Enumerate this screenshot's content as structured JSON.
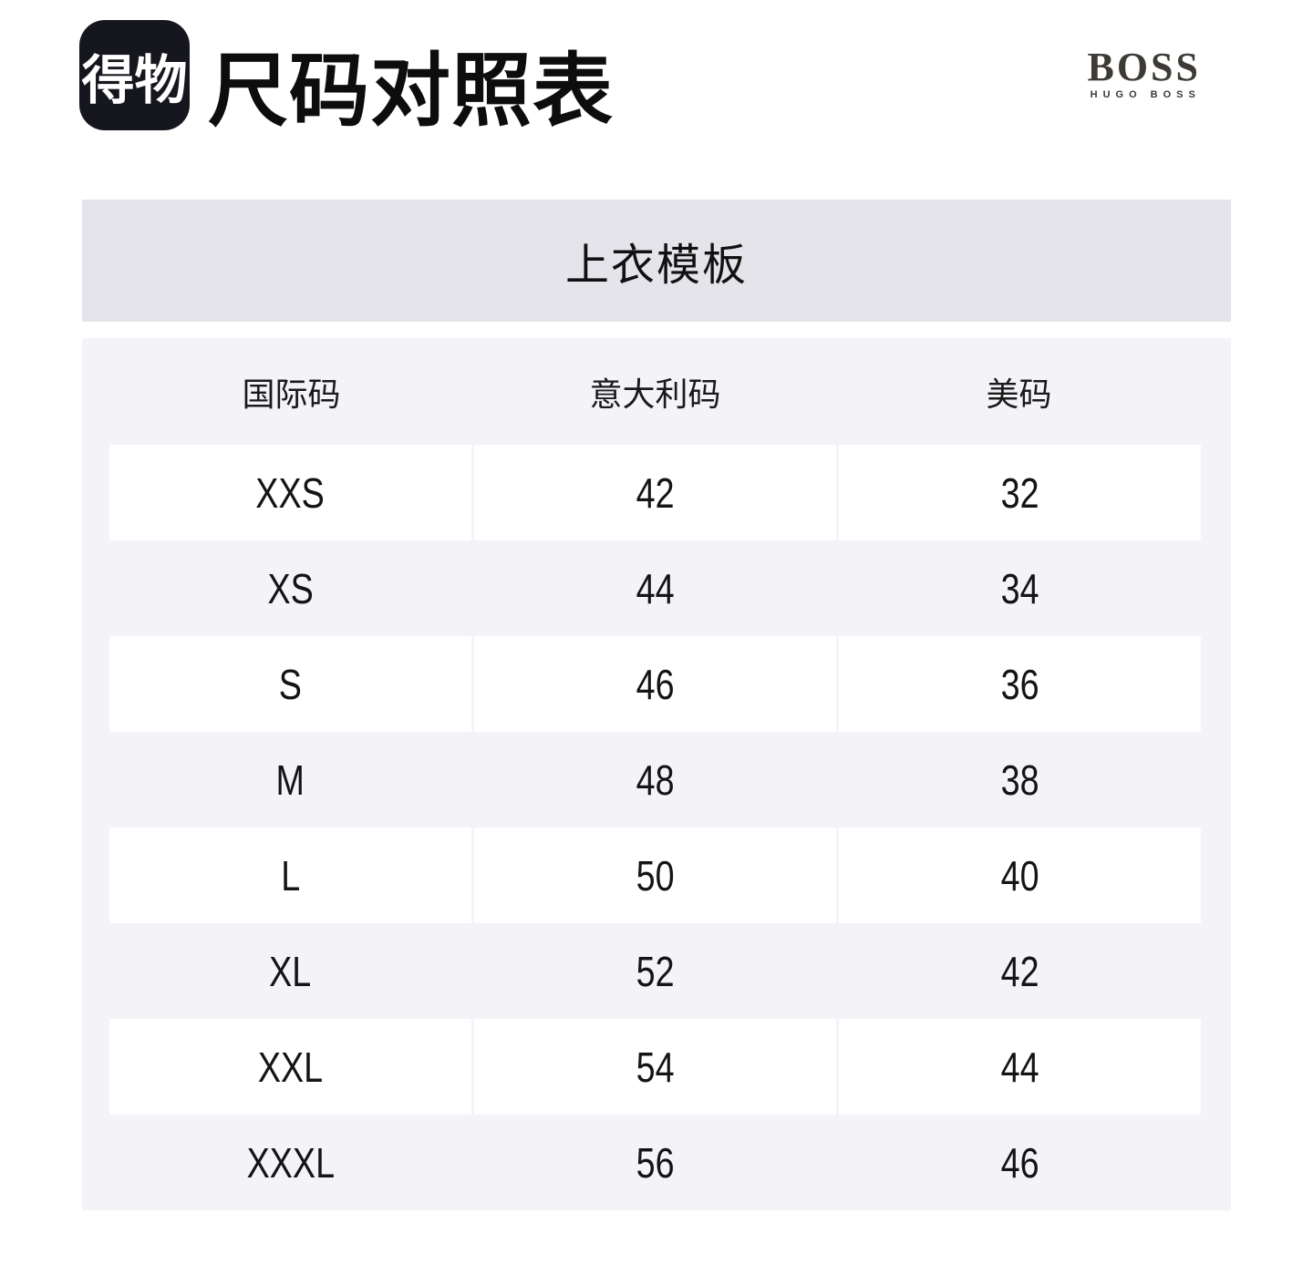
{
  "header": {
    "logo_text": "得物",
    "title": "尺码对照表",
    "brand": {
      "name": "BOSS",
      "subname": "HUGO BOSS"
    }
  },
  "banner": {
    "label": "上衣模板"
  },
  "size_table": {
    "columns": [
      "国际码",
      "意大利码",
      "美码"
    ],
    "rows": [
      [
        "XXS",
        "42",
        "32"
      ],
      [
        "XS",
        "44",
        "34"
      ],
      [
        "S",
        "46",
        "36"
      ],
      [
        "M",
        "48",
        "38"
      ],
      [
        "L",
        "50",
        "40"
      ],
      [
        "XL",
        "52",
        "42"
      ],
      [
        "XXL",
        "54",
        "44"
      ],
      [
        "XXXL",
        "56",
        "46"
      ]
    ]
  },
  "colors": {
    "page_bg": "#ffffff",
    "logo_bg": "#16161e",
    "logo_text": "#ffffff",
    "title_text": "#0d0d0d",
    "brand_text": "#3e3a36",
    "banner_bg": "#e5e4ea",
    "table_bg": "#f4f3f8",
    "row_stripe": "#ffffff",
    "cell_text": "#141414"
  }
}
